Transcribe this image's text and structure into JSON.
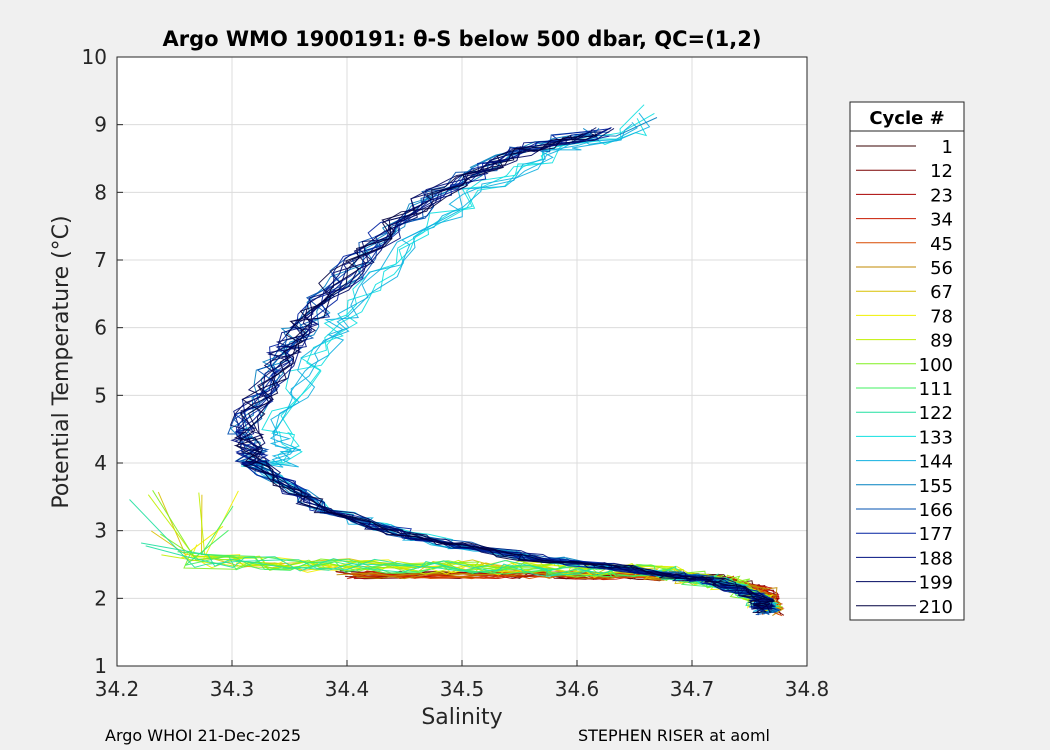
{
  "chart_data": {
    "type": "line",
    "title": "Argo WMO 1900191: θ-S below 500 dbar,  QC=(1,2)",
    "xlabel": "Salinity",
    "ylabel": "Potential Temperature (°C)",
    "xlim": [
      34.2,
      34.8
    ],
    "ylim": [
      1,
      10
    ],
    "xticks": [
      "34.2",
      "34.3",
      "34.4",
      "34.5",
      "34.6",
      "34.7",
      "34.8"
    ],
    "yticks": [
      "1",
      "2",
      "3",
      "4",
      "5",
      "6",
      "7",
      "8",
      "9",
      "10"
    ],
    "grid": true,
    "legend": {
      "title": "Cycle #",
      "placement": "right",
      "entries": [
        {
          "label": "1",
          "color": "#3a0000"
        },
        {
          "label": "12",
          "color": "#7a0000"
        },
        {
          "label": "23",
          "color": "#a80000"
        },
        {
          "label": "34",
          "color": "#c81a00"
        },
        {
          "label": "45",
          "color": "#d84a00"
        },
        {
          "label": "56",
          "color": "#c08a00"
        },
        {
          "label": "67",
          "color": "#d8c000"
        },
        {
          "label": "78",
          "color": "#f0f000"
        },
        {
          "label": "89",
          "color": "#c0f000"
        },
        {
          "label": "100",
          "color": "#80f020"
        },
        {
          "label": "111",
          "color": "#40f060"
        },
        {
          "label": "122",
          "color": "#20e0a0"
        },
        {
          "label": "133",
          "color": "#10e0e0"
        },
        {
          "label": "144",
          "color": "#10b0e0"
        },
        {
          "label": "155",
          "color": "#0080c0"
        },
        {
          "label": "166",
          "color": "#0050b0"
        },
        {
          "label": "177",
          "color": "#0020a0"
        },
        {
          "label": "188",
          "color": "#001080"
        },
        {
          "label": "199",
          "color": "#000860"
        },
        {
          "label": "210",
          "color": "#000040"
        }
      ]
    },
    "series_shape": {
      "description": "theta-S profiles for cycles 1-210, colored by cycle number",
      "upper_branch": [
        [
          34.62,
          8.9
        ],
        [
          34.55,
          8.6
        ],
        [
          34.48,
          8.0
        ],
        [
          34.42,
          7.2
        ],
        [
          34.37,
          6.2
        ],
        [
          34.34,
          5.5
        ],
        [
          34.31,
          4.5
        ],
        [
          34.32,
          4.0
        ]
      ],
      "lower_branch": [
        [
          34.32,
          4.0
        ],
        [
          34.38,
          3.3
        ],
        [
          34.46,
          2.9
        ],
        [
          34.56,
          2.6
        ],
        [
          34.66,
          2.4
        ],
        [
          34.72,
          2.25
        ],
        [
          34.76,
          2.0
        ],
        [
          34.765,
          1.8
        ]
      ],
      "early_cycles_tail": [
        [
          34.4,
          2.35
        ],
        [
          34.55,
          2.35
        ],
        [
          34.66,
          2.33
        ],
        [
          34.72,
          2.3
        ],
        [
          34.765,
          2.1
        ],
        [
          34.77,
          1.8
        ]
      ],
      "green_cycles_tail": [
        [
          34.27,
          2.55
        ],
        [
          34.4,
          2.48
        ],
        [
          34.55,
          2.45
        ],
        [
          34.66,
          2.4
        ],
        [
          34.74,
          2.2
        ],
        [
          34.765,
          1.9
        ]
      ]
    }
  },
  "footer": {
    "left": "Argo WHOI 21-Dec-2025",
    "right": "STEPHEN RISER at aoml"
  }
}
